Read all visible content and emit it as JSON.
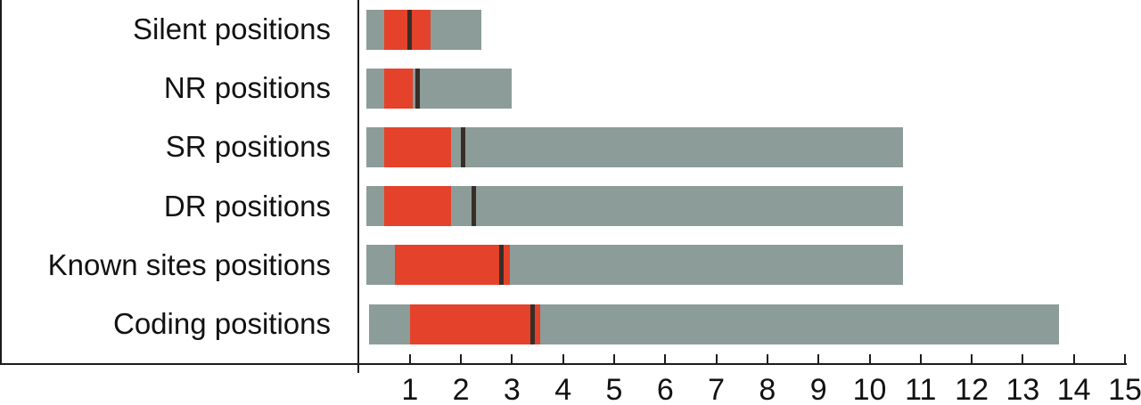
{
  "chart_data": {
    "type": "bar",
    "variant": "horizontal-range-box",
    "orientation": "horizontal",
    "title": "",
    "xlabel": "",
    "ylabel": "",
    "xlim": [
      0,
      15
    ],
    "x_ticks": [
      "1",
      "2",
      "3",
      "4",
      "5",
      "6",
      "7",
      "8",
      "9",
      "10",
      "11",
      "12",
      "13",
      "14",
      "15"
    ],
    "grid": false,
    "legend": "none",
    "categories": [
      "Silent positions",
      "NR positions",
      "SR positions",
      "DR positions",
      "Known sites positions",
      "Coding positions"
    ],
    "rows": [
      {
        "label": "Silent positions",
        "range": [
          0.15,
          2.4
        ],
        "box": [
          0.5,
          1.4
        ],
        "marker": 1.0
      },
      {
        "label": "NR positions",
        "range": [
          0.15,
          3.0
        ],
        "box": [
          0.5,
          1.05
        ],
        "marker": 1.15
      },
      {
        "label": "SR positions",
        "range": [
          0.15,
          10.65
        ],
        "box": [
          0.5,
          1.8
        ],
        "marker": 2.05
      },
      {
        "label": "DR positions",
        "range": [
          0.15,
          10.65
        ],
        "box": [
          0.5,
          1.8
        ],
        "marker": 2.25
      },
      {
        "label": "Known sites positions",
        "range": [
          0.15,
          10.65
        ],
        "box": [
          0.7,
          2.95
        ],
        "marker": 2.8
      },
      {
        "label": "Coding positions",
        "range": [
          0.2,
          13.7
        ],
        "box": [
          1.0,
          3.55
        ],
        "marker": 3.4
      }
    ],
    "colors": {
      "range_bar": "#8C9C99",
      "box": "#E4422B",
      "marker": "#382E28",
      "axis": "#1c1c1c",
      "text": "#121212",
      "background": "#ffffff"
    }
  }
}
